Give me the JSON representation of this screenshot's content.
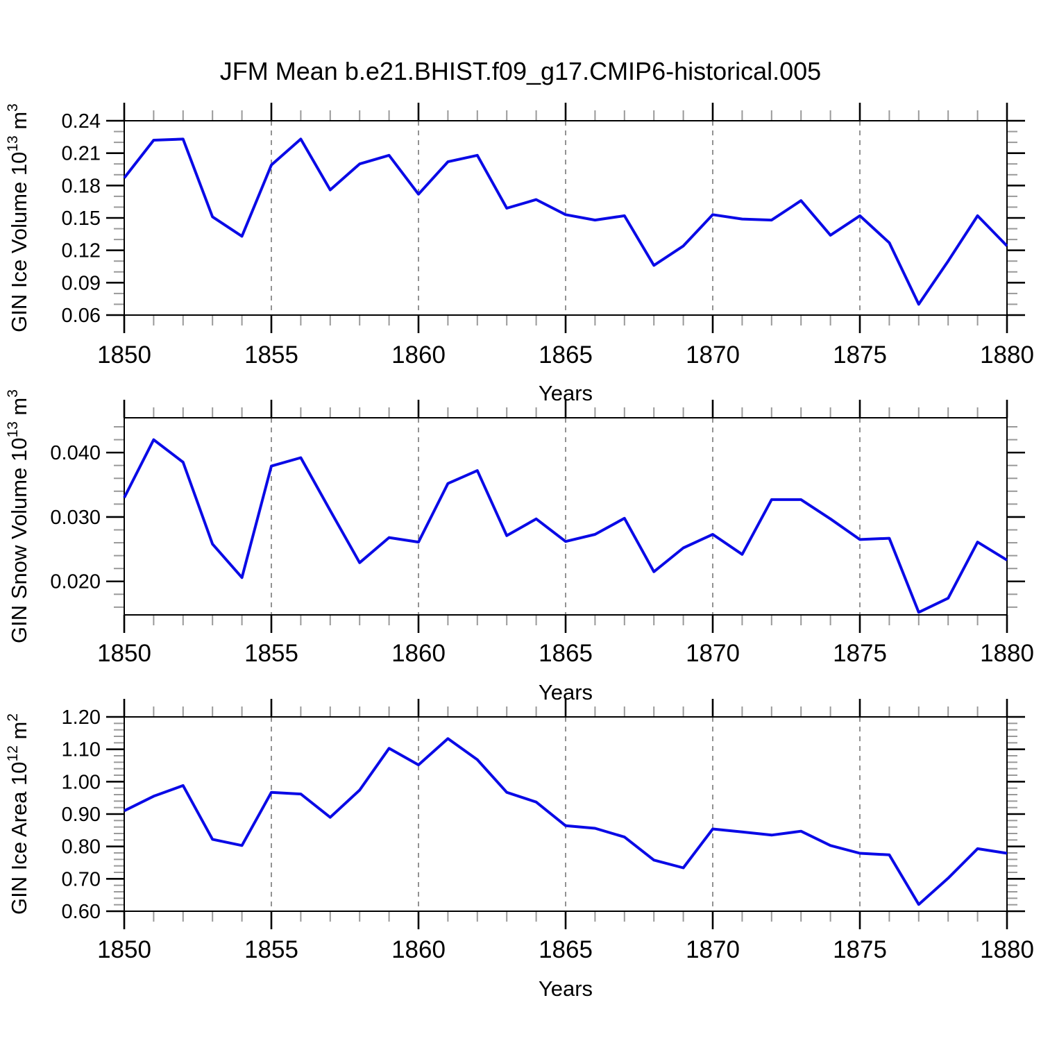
{
  "title": "JFM Mean b.e21.BHIST.f09_g17.CMIP6-historical.005",
  "xlabel": "Years",
  "colors": {
    "line": "#0a0ae6",
    "frame": "#000000",
    "minor_tick": "#999999",
    "gridline": "#777777",
    "background": "#ffffff"
  },
  "x_axis": {
    "start": 1850,
    "end": 1880,
    "major_tick_values": [
      1850,
      1855,
      1860,
      1865,
      1870,
      1875,
      1880
    ],
    "major_tick_labels": [
      "1850",
      "1855",
      "1860",
      "1865",
      "1870",
      "1875",
      "1880"
    ],
    "minor_step": 1,
    "grid_years": [
      1855,
      1860,
      1865,
      1870,
      1875
    ]
  },
  "chart_data": [
    {
      "type": "line",
      "id": "gin-ice-volume",
      "title": "",
      "ylabel_plain": "GIN Ice Volume 10^13 m^3",
      "ylabel_segments": [
        {
          "t": "GIN Ice Volume 10"
        },
        {
          "t": "13",
          "sup": true
        },
        {
          "t": " m"
        },
        {
          "t": "3",
          "sup": true
        }
      ],
      "xlabel": "Years",
      "ylim": [
        0.06,
        0.24
      ],
      "ytick_values": [
        0.24,
        0.21,
        0.18,
        0.15,
        0.12,
        0.09,
        0.06
      ],
      "ytick_labels": [
        "0.24",
        "0.21",
        "0.18",
        "0.15",
        "0.12",
        "0.09",
        "0.06"
      ],
      "yminor_step": 0.01,
      "grid": "vertical-dashed",
      "legend": "none",
      "x": [
        1850,
        1851,
        1852,
        1853,
        1854,
        1855,
        1856,
        1857,
        1858,
        1859,
        1860,
        1861,
        1862,
        1863,
        1864,
        1865,
        1866,
        1867,
        1868,
        1869,
        1870,
        1871,
        1872,
        1873,
        1874,
        1875,
        1876,
        1877,
        1878,
        1879,
        1880
      ],
      "values": [
        0.187,
        0.222,
        0.223,
        0.151,
        0.133,
        0.199,
        0.223,
        0.176,
        0.2,
        0.208,
        0.172,
        0.202,
        0.208,
        0.159,
        0.167,
        0.153,
        0.148,
        0.152,
        0.106,
        0.124,
        0.153,
        0.149,
        0.148,
        0.166,
        0.134,
        0.152,
        0.127,
        0.07,
        0.11,
        0.152,
        0.124
      ]
    },
    {
      "type": "line",
      "id": "gin-snow-volume",
      "title": "",
      "ylabel_plain": "GIN Snow Volume 10^13 m^3",
      "ylabel_segments": [
        {
          "t": "GIN Snow Volume 10"
        },
        {
          "t": "13",
          "sup": true
        },
        {
          "t": " m"
        },
        {
          "t": "3",
          "sup": true
        }
      ],
      "xlabel": "Years",
      "ylim": [
        0.0148,
        0.0454
      ],
      "ytick_values": [
        0.04,
        0.03,
        0.02
      ],
      "ytick_labels": [
        "0.040",
        "0.030",
        "0.020"
      ],
      "yminor_step": 0.002,
      "grid": "vertical-dashed",
      "legend": "none",
      "x": [
        1850,
        1851,
        1852,
        1853,
        1854,
        1855,
        1856,
        1857,
        1858,
        1859,
        1860,
        1861,
        1862,
        1863,
        1864,
        1865,
        1866,
        1867,
        1868,
        1869,
        1870,
        1871,
        1872,
        1873,
        1874,
        1875,
        1876,
        1877,
        1878,
        1879,
        1880
      ],
      "values": [
        0.033,
        0.042,
        0.0385,
        0.0258,
        0.0206,
        0.0379,
        0.0392,
        0.031,
        0.0229,
        0.0268,
        0.0261,
        0.0352,
        0.0372,
        0.0271,
        0.0297,
        0.0262,
        0.0273,
        0.0298,
        0.0215,
        0.0252,
        0.0273,
        0.0242,
        0.0327,
        0.0327,
        0.0297,
        0.0265,
        0.0267,
        0.0152,
        0.0174,
        0.0261,
        0.0233
      ]
    },
    {
      "type": "line",
      "id": "gin-ice-area",
      "title": "",
      "ylabel_plain": "GIN Ice Area 10^12 m^2",
      "ylabel_segments": [
        {
          "t": "GIN Ice Area 10"
        },
        {
          "t": "12",
          "sup": true
        },
        {
          "t": " m"
        },
        {
          "t": "2",
          "sup": true
        }
      ],
      "xlabel": "Years",
      "ylim": [
        0.6,
        1.2
      ],
      "ytick_values": [
        1.2,
        1.1,
        1.0,
        0.9,
        0.8,
        0.7,
        0.6
      ],
      "ytick_labels": [
        "1.20",
        "1.10",
        "1.00",
        "0.90",
        "0.80",
        "0.70",
        "0.60"
      ],
      "yminor_step": 0.02,
      "grid": "vertical-dashed",
      "legend": "none",
      "x": [
        1850,
        1851,
        1852,
        1853,
        1854,
        1855,
        1856,
        1857,
        1858,
        1859,
        1860,
        1861,
        1862,
        1863,
        1864,
        1865,
        1866,
        1867,
        1868,
        1869,
        1870,
        1871,
        1872,
        1873,
        1874,
        1875,
        1876,
        1877,
        1878,
        1879,
        1880
      ],
      "values": [
        0.91,
        0.955,
        0.988,
        0.822,
        0.803,
        0.967,
        0.962,
        0.89,
        0.974,
        1.103,
        1.052,
        1.133,
        1.068,
        0.967,
        0.937,
        0.864,
        0.856,
        0.829,
        0.758,
        0.734,
        0.854,
        0.845,
        0.835,
        0.847,
        0.803,
        0.779,
        0.774,
        0.621,
        0.702,
        0.793,
        0.779
      ]
    }
  ]
}
